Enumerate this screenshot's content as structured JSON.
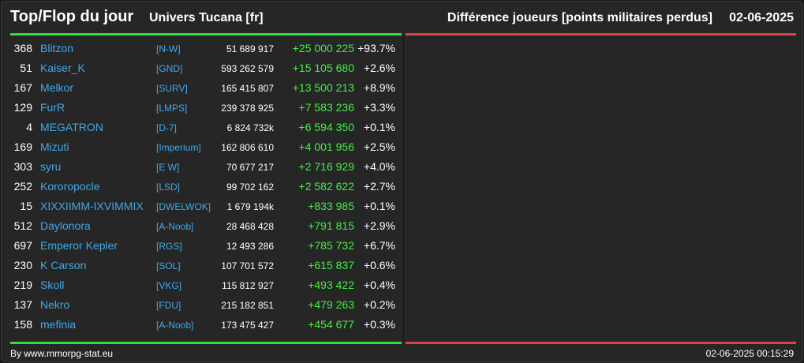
{
  "header": {
    "title": "Top/Flop du jour",
    "universe": "Univers Tucana [fr]",
    "metric": "Différence joueurs [points militaires perdus]",
    "date": "02-06-2025"
  },
  "colors": {
    "top_bar": "#33dd44",
    "flop_bar": "#dd4444",
    "gain": "#44ee44",
    "link": "#3fa9e8"
  },
  "rows": [
    {
      "rank": "368",
      "name": "Blitzon",
      "alliance": "[N-W]",
      "points": "51 689 917",
      "diff": "+25 000 225",
      "pct": "+93.7%"
    },
    {
      "rank": "51",
      "name": "Kaiser_K",
      "alliance": "[GND]",
      "points": "593 262 579",
      "diff": "+15 105 680",
      "pct": "+2.6%"
    },
    {
      "rank": "167",
      "name": "Melkor",
      "alliance": "[SURV]",
      "points": "165 415 807",
      "diff": "+13 500 213",
      "pct": "+8.9%"
    },
    {
      "rank": "129",
      "name": "FurR",
      "alliance": "[LMPS]",
      "points": "239 378 925",
      "diff": "+7 583 236",
      "pct": "+3.3%"
    },
    {
      "rank": "4",
      "name": "MEGATRON",
      "alliance": "[D-7]",
      "points": "6 824 732k",
      "diff": "+6 594 350",
      "pct": "+0.1%"
    },
    {
      "rank": "169",
      "name": "Mizuti",
      "alliance": "[Imperium]",
      "points": "162 806 610",
      "diff": "+4 001 956",
      "pct": "+2.5%"
    },
    {
      "rank": "303",
      "name": "syru",
      "alliance": "[E W]",
      "points": "70 677 217",
      "diff": "+2 716 929",
      "pct": "+4.0%"
    },
    {
      "rank": "252",
      "name": "Kororopocle",
      "alliance": "[LSD]",
      "points": "99 702 162",
      "diff": "+2 582 622",
      "pct": "+2.7%"
    },
    {
      "rank": "15",
      "name": "XIXXIIMM-IXVIMMIX",
      "alliance": "[DWELWOK]",
      "points": "1 679 194k",
      "diff": "+833 985",
      "pct": "+0.1%"
    },
    {
      "rank": "512",
      "name": "Daylonora",
      "alliance": "[A-Noob]",
      "points": "28 468 428",
      "diff": "+791 815",
      "pct": "+2.9%"
    },
    {
      "rank": "697",
      "name": "Emperor Kepler",
      "alliance": "[RGS]",
      "points": "12 493 286",
      "diff": "+785 732",
      "pct": "+6.7%"
    },
    {
      "rank": "230",
      "name": "K Carson",
      "alliance": "[SOL]",
      "points": "107 701 572",
      "diff": "+615 837",
      "pct": "+0.6%"
    },
    {
      "rank": "219",
      "name": "Skoll",
      "alliance": "[VKG]",
      "points": "115 812 927",
      "diff": "+493 422",
      "pct": "+0.4%"
    },
    {
      "rank": "137",
      "name": "Nekro",
      "alliance": "[FDU]",
      "points": "215 182 851",
      "diff": "+479 263",
      "pct": "+0.2%"
    },
    {
      "rank": "158",
      "name": "mefinia",
      "alliance": "[A-Noob]",
      "points": "173 475 427",
      "diff": "+454 677",
      "pct": "+0.3%"
    }
  ],
  "footer": {
    "source": "By www.mmorpg-stat.eu",
    "timestamp": "02-06-2025 00:15:29"
  }
}
